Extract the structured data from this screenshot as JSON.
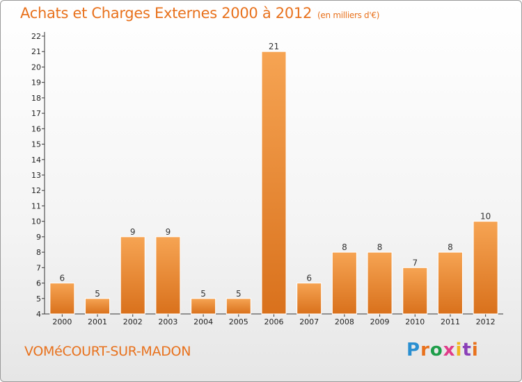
{
  "header": {
    "title": "Achats et Charges Externes 2000 à 2012",
    "subtitle": "(en milliers d'€)"
  },
  "footer": {
    "commune": "VOMéCOURT-SUR-MADON",
    "logo_text": "Proxiti"
  },
  "colors": {
    "accent": "#e8711c",
    "bar_top": "#f6a453",
    "bar_bottom": "#d9711c"
  },
  "chart_data": {
    "type": "bar",
    "title": "Achats et Charges Externes 2000 à 2012",
    "subtitle": "(en milliers d'€)",
    "xlabel": "",
    "ylabel": "",
    "categories": [
      "2000",
      "2001",
      "2002",
      "2003",
      "2004",
      "2005",
      "2006",
      "2007",
      "2008",
      "2009",
      "2010",
      "2011",
      "2012"
    ],
    "values": [
      6,
      5,
      9,
      9,
      5,
      5,
      21,
      6,
      8,
      8,
      7,
      8,
      10
    ],
    "ylim": [
      4,
      22
    ],
    "yticks": [
      4,
      5,
      6,
      7,
      8,
      9,
      10,
      11,
      12,
      13,
      14,
      15,
      16,
      17,
      18,
      19,
      20,
      21,
      22
    ],
    "grid": false,
    "legend": "none"
  }
}
